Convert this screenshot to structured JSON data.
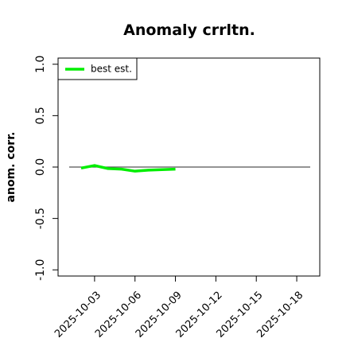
{
  "chart_data": {
    "type": "line",
    "title": "Anomaly crrltn.",
    "y_label": "anom. corr.",
    "x": [
      "2025-10-02",
      "2025-10-03",
      "2025-10-04",
      "2025-10-05",
      "2025-10-06",
      "2025-10-07",
      "2025-10-08",
      "2025-10-09"
    ],
    "series": [
      {
        "name": "best est.",
        "color": "#00ee00",
        "values": [
          -0.01,
          0.015,
          -0.015,
          -0.02,
          -0.04,
          -0.03,
          -0.025,
          -0.02
        ]
      }
    ],
    "xlim": [
      "2025-09-30T07:00:00Z",
      "2025-10-19T17:00:00Z"
    ],
    "xticks": [
      "2025-10-03",
      "2025-10-06",
      "2025-10-09",
      "2025-10-12",
      "2025-10-15",
      "2025-10-18"
    ],
    "ylim": [
      -1.06,
      1.06
    ],
    "yticks": [
      {
        "value": -1,
        "label": "-1.0"
      },
      -0.5,
      {
        "value": 0,
        "label": "0.0"
      },
      0.5,
      {
        "value": 1,
        "label": "1.0"
      }
    ],
    "legend": "top-left"
  }
}
